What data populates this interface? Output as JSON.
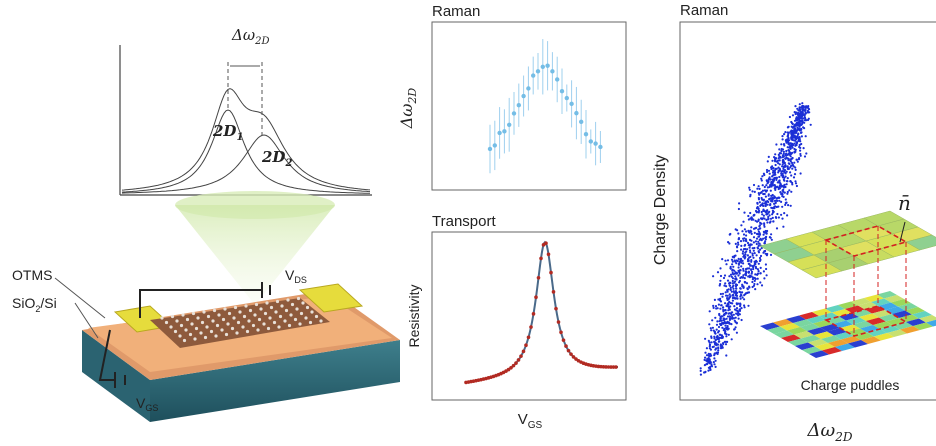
{
  "left": {
    "peak_label": {
      "main": "Δω",
      "sub": "2D"
    },
    "peak1": {
      "main": "2D",
      "sub": "1"
    },
    "peak2": {
      "main": "2D",
      "sub": "2"
    },
    "layer_top": "OTMS",
    "layer_bottom": {
      "main": "SiO",
      "sub": "2",
      "tail": "/Si"
    },
    "vds": {
      "main": "V",
      "sub": "DS"
    },
    "vgs": {
      "main": "V",
      "sub": "GS"
    }
  },
  "middle": {
    "raman_title": "Raman",
    "raman_ylabel": {
      "main": "Δω",
      "sub": "2D"
    },
    "transport_title": "Transport",
    "transport_ylabel": "Resistivity",
    "transport_xlabel": {
      "main": "V",
      "sub": "GS"
    }
  },
  "right": {
    "title": "Raman",
    "ylabel": "Charge Density",
    "xlabel": {
      "main": "Δω",
      "sub": "2D"
    },
    "nbar": "n̄",
    "puddles": "Charge puddles"
  }
}
